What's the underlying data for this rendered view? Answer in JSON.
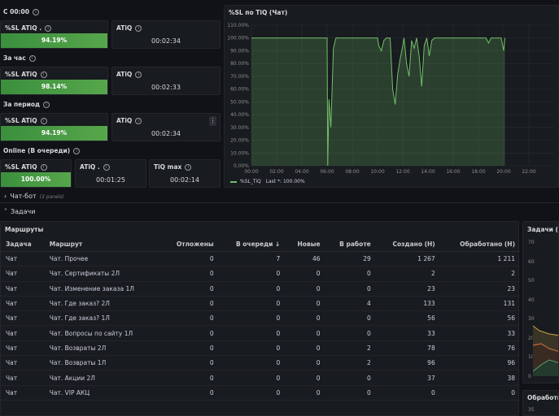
{
  "sections": {
    "c0000": "С 00:00",
    "hour": "За час",
    "period": "За период",
    "online": "Online (В очереди)"
  },
  "stats": {
    "r1": {
      "sl_title": "%SL ATiQ .",
      "sl_value": "94.19%",
      "at_title": "ATiQ",
      "at_value": "00:02:34"
    },
    "r2": {
      "sl_title": "%SL ATiQ",
      "sl_value": "98.14%",
      "at_title": "ATiQ",
      "at_value": "00:02:33"
    },
    "r3": {
      "sl_title": "%SL ATiQ",
      "sl_value": "94.19%",
      "at_title": "ATiQ",
      "at_value": "00:02:34"
    },
    "r4": {
      "sl_title": "%SL ATiQ",
      "sl_value": "100.00%",
      "at_title": "ATiQ .",
      "at_value": "00:01:25",
      "max_title": "TiQ max",
      "max_value": "00:02:14"
    }
  },
  "chart_panel": {
    "title": "%SL по TiQ (Чат)"
  },
  "chart_data": {
    "type": "line",
    "ylabels": [
      "110.00%",
      "100.00%",
      "90.00%",
      "80.00%",
      "70.00%",
      "60.00%",
      "50.00%",
      "40.00%",
      "30.00%",
      "20.00%",
      "10.00%",
      "0.00%"
    ],
    "xlabels": [
      "00:00",
      "02:00",
      "04:00",
      "06:00",
      "08:00",
      "10:00",
      "12:00",
      "14:00",
      "16:00",
      "18:00",
      "20:00",
      "22:00"
    ],
    "ylim": [
      0,
      110
    ],
    "xlim": [
      0,
      24
    ],
    "series": [
      {
        "name": "%SL_TiQ",
        "color": "#73bf69",
        "points": [
          [
            0,
            100
          ],
          [
            6,
            100
          ],
          [
            6.05,
            0
          ],
          [
            6.15,
            52
          ],
          [
            6.3,
            30
          ],
          [
            6.5,
            92
          ],
          [
            6.7,
            100
          ],
          [
            10,
            100
          ],
          [
            10.1,
            94
          ],
          [
            10.3,
            90
          ],
          [
            10.5,
            98
          ],
          [
            10.7,
            100
          ],
          [
            11,
            100
          ],
          [
            11.2,
            60
          ],
          [
            11.4,
            48
          ],
          [
            11.6,
            72
          ],
          [
            11.8,
            84
          ],
          [
            12,
            94
          ],
          [
            12.1,
            100
          ],
          [
            12.3,
            80
          ],
          [
            12.5,
            70
          ],
          [
            12.7,
            98
          ],
          [
            12.9,
            92
          ],
          [
            13.1,
            100
          ],
          [
            13.3,
            86
          ],
          [
            13.5,
            62
          ],
          [
            13.7,
            94
          ],
          [
            13.9,
            100
          ],
          [
            14.1,
            86
          ],
          [
            14.3,
            98
          ],
          [
            14.5,
            100
          ],
          [
            18.6,
            100
          ],
          [
            18.8,
            96
          ],
          [
            19,
            100
          ],
          [
            19.8,
            100
          ],
          [
            20,
            90
          ],
          [
            20.1,
            100
          ]
        ]
      }
    ],
    "legend_name": "%SL_TiQ",
    "legend_text": "Last *: 100.00%"
  },
  "rows": {
    "chatbot": {
      "title": "Чат-бот",
      "sub": "(3 panels)"
    },
    "tasks": {
      "title": "Задачи"
    }
  },
  "routes_panel": {
    "title": "Маршруты",
    "columns": [
      "Задача",
      "Маршрут",
      "Отложены",
      "В очереди ↓",
      "Новые",
      "В работе",
      "Создано (Н)",
      "Обработано (Н)"
    ],
    "rows": [
      [
        "Чат",
        "Чат. Прочее",
        "0",
        "7",
        "46",
        "29",
        "1 267",
        "1 211"
      ],
      [
        "Чат",
        "Чат. Сертификаты 2Л",
        "0",
        "0",
        "0",
        "0",
        "2",
        "2"
      ],
      [
        "Чат",
        "Чат. Изменение заказа 1Л",
        "0",
        "0",
        "0",
        "0",
        "23",
        "23"
      ],
      [
        "Чат",
        "Чат. Где заказ? 2Л",
        "0",
        "0",
        "0",
        "4",
        "133",
        "131"
      ],
      [
        "Чат",
        "Чат. Где заказ? 1Л",
        "0",
        "0",
        "0",
        "0",
        "56",
        "56"
      ],
      [
        "Чат",
        "Чат. Вопросы по сайту 1Л",
        "0",
        "0",
        "0",
        "0",
        "33",
        "33"
      ],
      [
        "Чат",
        "Чат. Возвраты 2Л",
        "0",
        "0",
        "0",
        "2",
        "78",
        "76"
      ],
      [
        "Чат",
        "Чат. Возвраты 1Л",
        "0",
        "0",
        "0",
        "2",
        "96",
        "96"
      ],
      [
        "Чат",
        "Чат. Акции 2Л",
        "0",
        "0",
        "0",
        "0",
        "37",
        "38"
      ],
      [
        "Чат",
        "Чат. VIP АКЦ",
        "0",
        "0",
        "0",
        "0",
        "0",
        "0"
      ]
    ]
  },
  "right_panels": {
    "tasks_title": "Задачи (Чат",
    "tasks_yticks": [
      "70",
      "60",
      "50",
      "40",
      "30",
      "20",
      "10",
      "0"
    ],
    "processing_title": "Обработка",
    "processing_ytick": "35"
  },
  "icons": {
    "info": "info-circle-icon",
    "menu": "kebab-menu-icon",
    "chevron": "chevron-icon"
  }
}
